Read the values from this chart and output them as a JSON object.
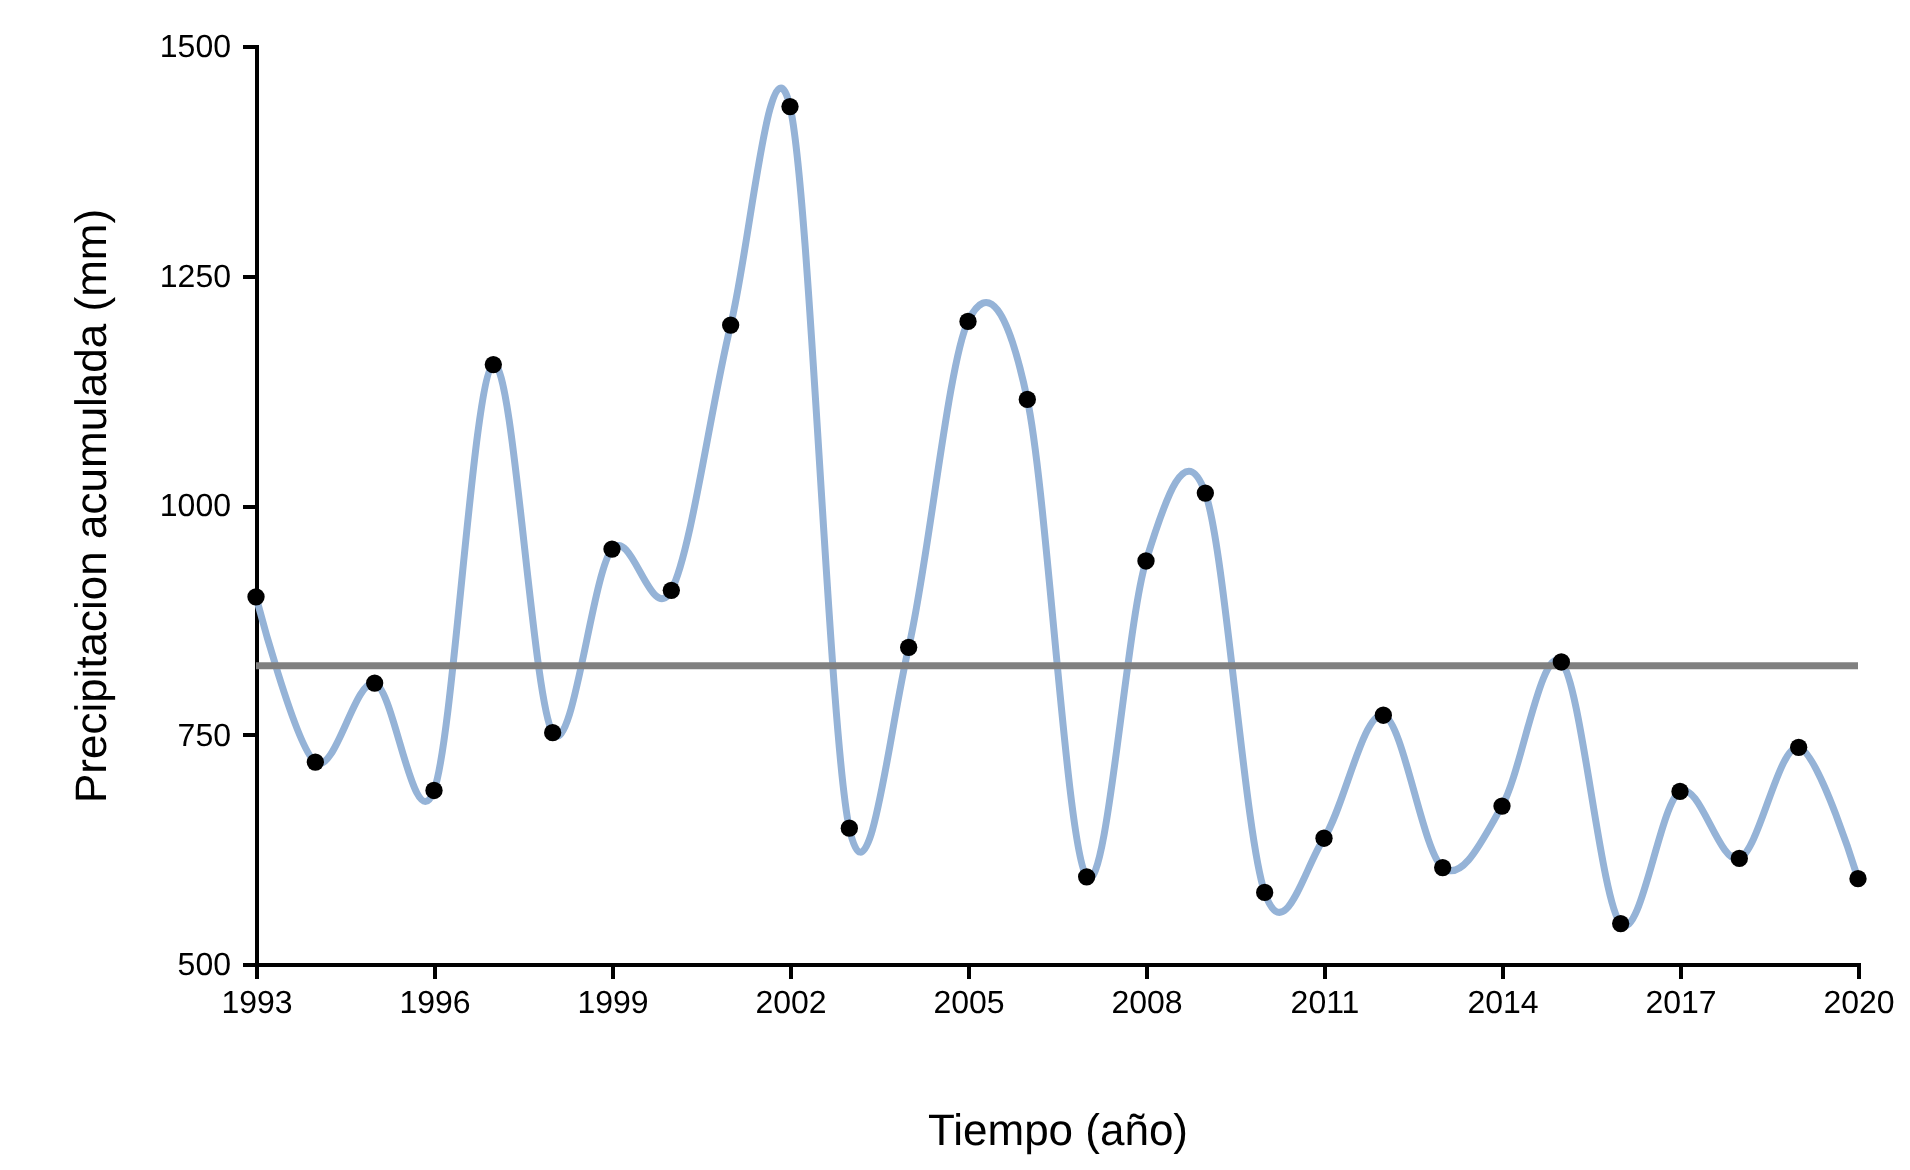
{
  "chart_data": {
    "type": "line",
    "xlabel": "Tiempo (año)",
    "ylabel": "Precipitacion acumulada (mm)",
    "x": [
      1993,
      1994,
      1995,
      1996,
      1997,
      1998,
      1999,
      2000,
      2001,
      2002,
      2003,
      2004,
      2005,
      2006,
      2007,
      2008,
      2009,
      2010,
      2011,
      2012,
      2013,
      2014,
      2015,
      2016,
      2017,
      2018,
      2019,
      2020
    ],
    "series": [
      {
        "color": "#95b3d7",
        "marker": "none",
        "values": [
          900,
          720,
          806,
          689,
          1153,
          752,
          952,
          907,
          1196,
          1434,
          648,
          845,
          1200,
          1115,
          595,
          939,
          1013,
          578,
          637,
          771,
          605,
          672,
          829,
          544,
          688,
          615,
          736,
          593
        ]
      },
      {
        "type": "scatter",
        "color": "#000000",
        "marker": "circle",
        "values": [
          900,
          720,
          806,
          689,
          1153,
          752,
          952,
          907,
          1196,
          1434,
          648,
          845,
          1200,
          1115,
          595,
          939,
          1013,
          578,
          637,
          771,
          605,
          672,
          829,
          544,
          688,
          615,
          736,
          593
        ]
      }
    ],
    "ref_lines": [
      {
        "axis": "y",
        "value": 825,
        "color": "#808080"
      }
    ],
    "xlim": [
      1993,
      2020
    ],
    "xticks": [
      1993,
      1996,
      1999,
      2002,
      2005,
      2008,
      2011,
      2014,
      2017,
      2020
    ],
    "ylim": [
      500,
      1500
    ],
    "yticks": [
      500,
      750,
      1000,
      1250,
      1500
    ],
    "grid": false
  }
}
